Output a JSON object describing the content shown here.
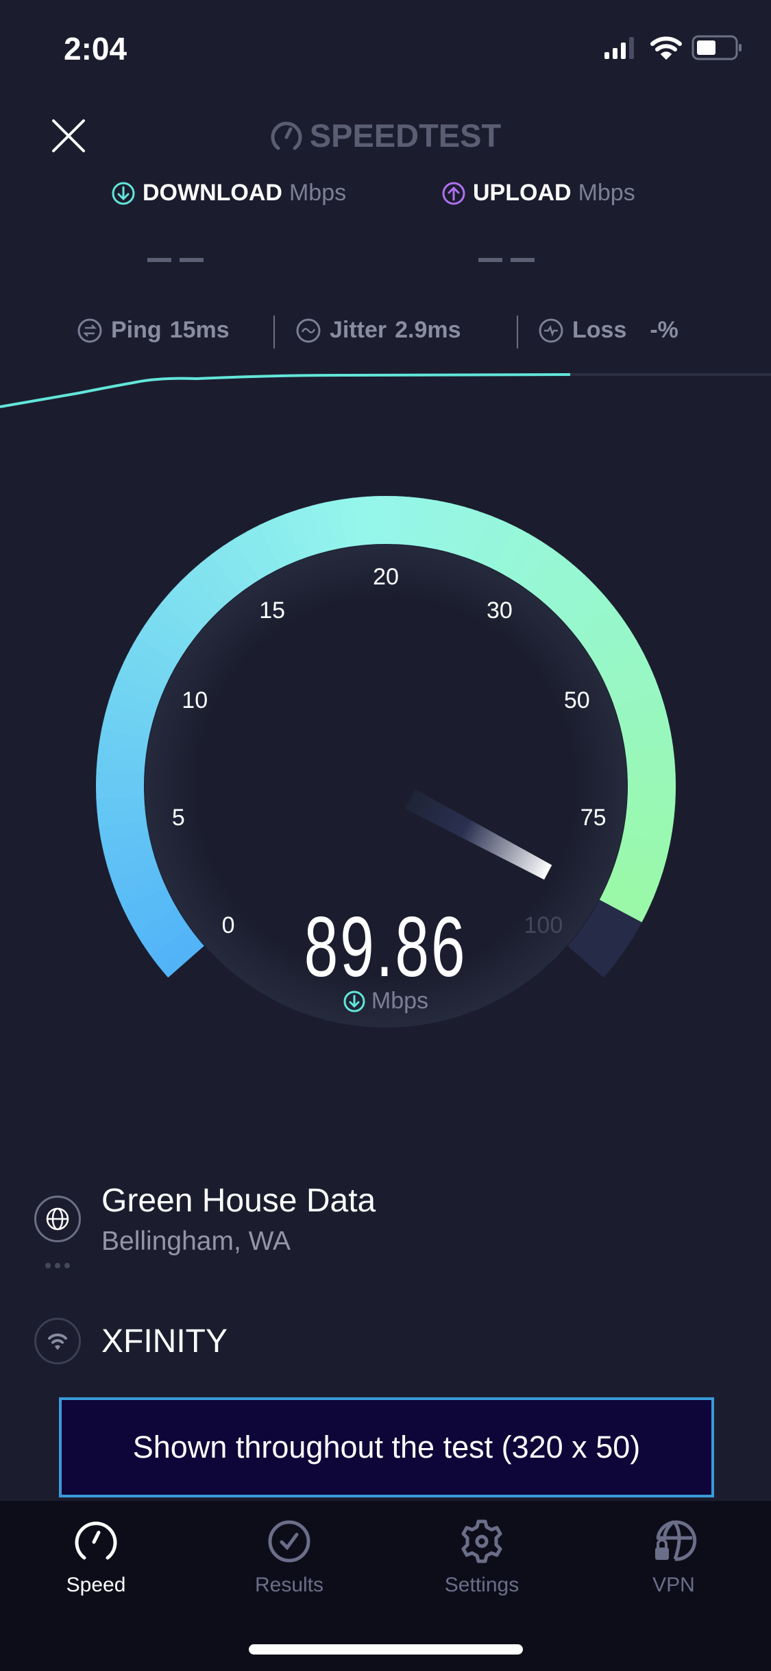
{
  "status_bar": {
    "time": "2:04",
    "signal_icon": "cellular-signal-icon",
    "wifi_icon": "wifi-icon",
    "battery_icon": "battery-icon"
  },
  "header": {
    "close_icon": "close-icon",
    "logo_text": "SPEEDTEST"
  },
  "results": {
    "download": {
      "label": "DOWNLOAD",
      "unit": "Mbps",
      "value": "– –",
      "icon": "download-arrow-icon",
      "color": "#62e6da"
    },
    "upload": {
      "label": "UPLOAD",
      "unit": "Mbps",
      "value": "– –",
      "icon": "upload-arrow-icon",
      "color": "#b070f0"
    }
  },
  "metrics": {
    "ping": {
      "label": "Ping",
      "value": "15ms"
    },
    "jitter": {
      "label": "Jitter",
      "value": "2.9ms"
    },
    "loss": {
      "label": "Loss",
      "value": "-%"
    }
  },
  "gauge": {
    "ticks": [
      "0",
      "5",
      "10",
      "15",
      "20",
      "30",
      "50",
      "75",
      "100"
    ],
    "current_value": "89.86",
    "current_number": 89.86,
    "unit": "Mbps",
    "colors": {
      "start": "#52b4f7",
      "mid": "#95f6ec",
      "end": "#9af8a6",
      "track": "#262b48"
    }
  },
  "server": {
    "name": "Green House Data",
    "location": "Bellingham, WA",
    "icon": "globe-icon"
  },
  "provider": {
    "name": "XFINITY",
    "icon": "wifi-icon"
  },
  "ad": {
    "text": "Shown throughout the test (320 x 50)"
  },
  "tabs": [
    {
      "label": "Speed",
      "icon": "speedometer-icon",
      "active": true
    },
    {
      "label": "Results",
      "icon": "checkmark-circle-icon",
      "active": false
    },
    {
      "label": "Settings",
      "icon": "gear-icon",
      "active": false
    },
    {
      "label": "VPN",
      "icon": "globe-lock-icon",
      "active": false
    }
  ]
}
